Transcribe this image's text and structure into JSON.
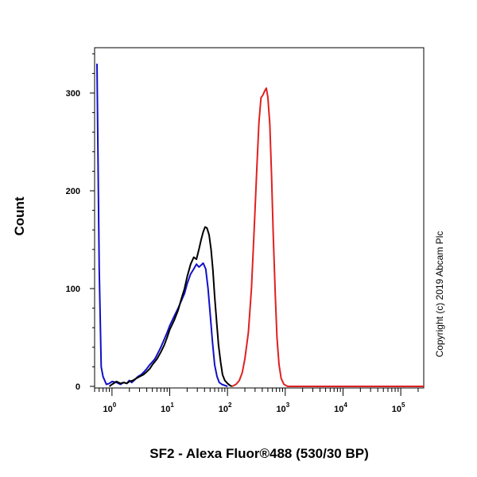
{
  "chart_data": {
    "type": "line",
    "title": "",
    "xlabel": "SF2 - Alexa Fluor®488 (530/30 BP)",
    "ylabel": "Count",
    "xscale": "log",
    "xlim": [
      0.5,
      250000
    ],
    "ylim": [
      0,
      340
    ],
    "x_ticks": [
      {
        "base": "10",
        "exp": "0",
        "value": 1
      },
      {
        "base": "10",
        "exp": "1",
        "value": 10
      },
      {
        "base": "10",
        "exp": "2",
        "value": 100
      },
      {
        "base": "10",
        "exp": "3",
        "value": 1000
      },
      {
        "base": "10",
        "exp": "4",
        "value": 10000
      },
      {
        "base": "10",
        "exp": "5",
        "value": 100000
      }
    ],
    "y_ticks": [
      "0",
      "100",
      "200",
      "300"
    ],
    "y_tick_values": [
      0,
      100,
      200,
      300
    ],
    "grid": false,
    "series": [
      {
        "color": "#1010c8",
        "points": [
          [
            0.55,
            330
          ],
          [
            0.6,
            120
          ],
          [
            0.65,
            20
          ],
          [
            0.7,
            10
          ],
          [
            0.8,
            2
          ],
          [
            0.9,
            3
          ],
          [
            1.0,
            5
          ],
          [
            1.2,
            4
          ],
          [
            1.4,
            2
          ],
          [
            1.6,
            4
          ],
          [
            1.8,
            3
          ],
          [
            2.0,
            6
          ],
          [
            2.2,
            4
          ],
          [
            2.5,
            7
          ],
          [
            2.8,
            10
          ],
          [
            3.2,
            12
          ],
          [
            3.6,
            15
          ],
          [
            4.0,
            18
          ],
          [
            4.5,
            22
          ],
          [
            5.0,
            25
          ],
          [
            5.5,
            28
          ],
          [
            6.0,
            32
          ],
          [
            7.0,
            40
          ],
          [
            8.0,
            48
          ],
          [
            9.0,
            55
          ],
          [
            10,
            62
          ],
          [
            12,
            72
          ],
          [
            14,
            80
          ],
          [
            16,
            88
          ],
          [
            18,
            95
          ],
          [
            20,
            105
          ],
          [
            23,
            115
          ],
          [
            26,
            120
          ],
          [
            29,
            125
          ],
          [
            32,
            122
          ],
          [
            35,
            124
          ],
          [
            38,
            126
          ],
          [
            42,
            120
          ],
          [
            46,
            100
          ],
          [
            50,
            75
          ],
          [
            55,
            45
          ],
          [
            60,
            22
          ],
          [
            66,
            10
          ],
          [
            72,
            4
          ],
          [
            80,
            2
          ],
          [
            90,
            1
          ],
          [
            100,
            0
          ]
        ]
      },
      {
        "color": "#000000",
        "points": [
          [
            0.9,
            0
          ],
          [
            1.0,
            2
          ],
          [
            1.2,
            5
          ],
          [
            1.4,
            3
          ],
          [
            1.6,
            4
          ],
          [
            1.8,
            3
          ],
          [
            2.0,
            5
          ],
          [
            2.3,
            6
          ],
          [
            2.6,
            8
          ],
          [
            3.0,
            10
          ],
          [
            3.5,
            12
          ],
          [
            4.0,
            15
          ],
          [
            4.5,
            18
          ],
          [
            5.0,
            22
          ],
          [
            6.0,
            28
          ],
          [
            7.0,
            35
          ],
          [
            8.0,
            42
          ],
          [
            9.0,
            50
          ],
          [
            10,
            58
          ],
          [
            12,
            68
          ],
          [
            14,
            78
          ],
          [
            16,
            90
          ],
          [
            18,
            100
          ],
          [
            20,
            112
          ],
          [
            23,
            125
          ],
          [
            26,
            132
          ],
          [
            29,
            130
          ],
          [
            32,
            140
          ],
          [
            35,
            150
          ],
          [
            38,
            158
          ],
          [
            41,
            163
          ],
          [
            44,
            162
          ],
          [
            48,
            155
          ],
          [
            52,
            140
          ],
          [
            56,
            118
          ],
          [
            60,
            92
          ],
          [
            65,
            65
          ],
          [
            70,
            42
          ],
          [
            76,
            25
          ],
          [
            82,
            12
          ],
          [
            90,
            6
          ],
          [
            100,
            3
          ],
          [
            110,
            1
          ],
          [
            120,
            0
          ]
        ]
      },
      {
        "color": "#e02020",
        "points": [
          [
            120,
            0
          ],
          [
            140,
            2
          ],
          [
            160,
            6
          ],
          [
            180,
            14
          ],
          [
            200,
            28
          ],
          [
            230,
            55
          ],
          [
            260,
            100
          ],
          [
            290,
            160
          ],
          [
            320,
            220
          ],
          [
            350,
            270
          ],
          [
            380,
            295
          ],
          [
            410,
            298
          ],
          [
            440,
            302
          ],
          [
            470,
            305
          ],
          [
            500,
            296
          ],
          [
            540,
            268
          ],
          [
            580,
            215
          ],
          [
            620,
            155
          ],
          [
            670,
            95
          ],
          [
            720,
            50
          ],
          [
            780,
            22
          ],
          [
            850,
            8
          ],
          [
            950,
            2
          ],
          [
            1100,
            0
          ],
          [
            250000,
            0
          ]
        ]
      }
    ]
  },
  "copyright": "Copyright (c) 2019 Abcam Plc"
}
